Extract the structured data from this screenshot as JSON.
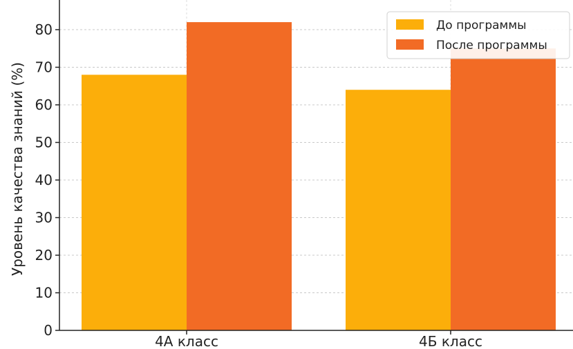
{
  "chart_data": {
    "type": "bar",
    "title": "",
    "xlabel": "",
    "ylabel": "Уровень качества знаний (%)",
    "categories": [
      "4А класс",
      "4Б класс"
    ],
    "series": [
      {
        "name": "До программы",
        "values": [
          68,
          64
        ],
        "color": "#FCAE0A"
      },
      {
        "name": "После программы",
        "values": [
          82,
          75
        ],
        "color": "#F26B25"
      }
    ],
    "ylim": [
      0,
      85
    ],
    "yticks": [
      "0",
      "10",
      "20",
      "30",
      "40",
      "50",
      "60",
      "70",
      "80"
    ],
    "grid": true,
    "legend": "top-right"
  }
}
